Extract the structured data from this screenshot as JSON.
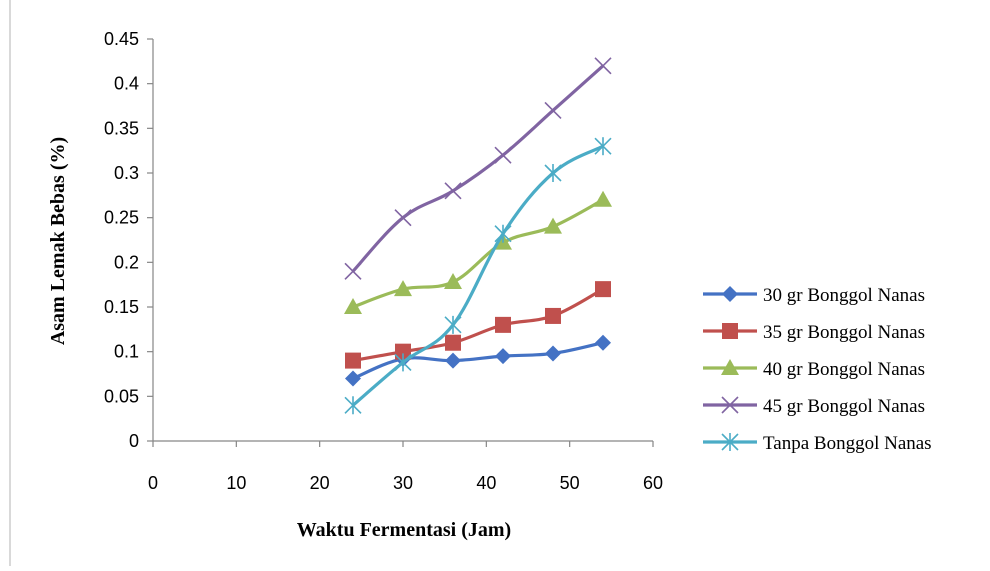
{
  "chart_data": {
    "type": "line",
    "xlabel": "Waktu Fermentasi (Jam)",
    "ylabel": "Asam Lemak Bebas (%)",
    "xlim": [
      0,
      60
    ],
    "ylim": [
      0,
      0.45
    ],
    "xticks": [
      "0",
      "10",
      "20",
      "30",
      "40",
      "50",
      "60"
    ],
    "yticks": [
      "0",
      "0.05",
      "0.1",
      "0.15",
      "0.2",
      "0.25",
      "0.3",
      "0.35",
      "0.4",
      "0.45"
    ],
    "grid": false,
    "legend_position": "right",
    "x": [
      24,
      30,
      36,
      42,
      48,
      54
    ],
    "series": [
      {
        "name": "30 gr Bonggol Nanas",
        "values": [
          0.07,
          0.092,
          0.09,
          0.095,
          0.098,
          0.11
        ],
        "color": "#4472c4",
        "marker": "diamond"
      },
      {
        "name": "35 gr Bonggol Nanas",
        "values": [
          0.09,
          0.1,
          0.11,
          0.13,
          0.14,
          0.17
        ],
        "color": "#c0504d",
        "marker": "square"
      },
      {
        "name": "40 gr Bonggol Nanas",
        "values": [
          0.15,
          0.17,
          0.178,
          0.222,
          0.24,
          0.27
        ],
        "color": "#9bbb59",
        "marker": "triangle"
      },
      {
        "name": "45 gr Bonggol Nanas",
        "values": [
          0.19,
          0.25,
          0.28,
          0.32,
          0.37,
          0.42
        ],
        "color": "#8064a2",
        "marker": "x"
      },
      {
        "name": "Tanpa Bonggol Nanas",
        "values": [
          0.04,
          0.088,
          0.13,
          0.232,
          0.3,
          0.33
        ],
        "color": "#4bacc6",
        "marker": "star"
      }
    ]
  }
}
